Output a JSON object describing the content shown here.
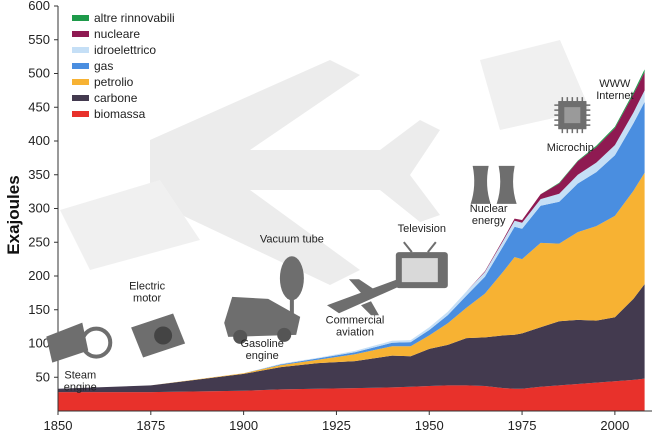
{
  "chart_data": {
    "type": "area",
    "stacked": true,
    "title": "",
    "xlabel": "",
    "ylabel": "Exajoules",
    "xlim": [
      1850,
      2010
    ],
    "ylim": [
      0,
      600
    ],
    "x_ticks": [
      1850,
      1875,
      1900,
      1925,
      1950,
      1975,
      2000
    ],
    "y_ticks": [
      50,
      100,
      150,
      200,
      250,
      300,
      350,
      400,
      450,
      500,
      550,
      600
    ],
    "grid": false,
    "legend_position": "top-left",
    "x": [
      1850,
      1875,
      1900,
      1910,
      1920,
      1930,
      1940,
      1945,
      1950,
      1955,
      1960,
      1965,
      1970,
      1973,
      1975,
      1980,
      1985,
      1990,
      1995,
      2000,
      2005,
      2008
    ],
    "series": [
      {
        "name": "biomassa",
        "color": "#e8312b",
        "values": [
          28,
          28,
          30,
          32,
          33,
          34,
          35,
          36,
          37,
          38,
          38,
          37,
          34,
          33,
          33,
          36,
          38,
          40,
          42,
          44,
          46,
          48
        ]
      },
      {
        "name": "carbone",
        "color": "#433a4f",
        "values": [
          5,
          10,
          25,
          33,
          38,
          40,
          47,
          45,
          55,
          60,
          70,
          72,
          78,
          80,
          82,
          88,
          95,
          95,
          92,
          95,
          120,
          140
        ]
      },
      {
        "name": "petrolio",
        "color": "#f7b233",
        "values": [
          0,
          0,
          1,
          3,
          5,
          10,
          14,
          15,
          20,
          32,
          45,
          65,
          95,
          115,
          110,
          125,
          115,
          130,
          140,
          150,
          160,
          165
        ]
      },
      {
        "name": "gas",
        "color": "#4a8ee0",
        "values": [
          0,
          0,
          0,
          1,
          2,
          3,
          5,
          6,
          8,
          12,
          18,
          25,
          38,
          45,
          45,
          55,
          62,
          72,
          80,
          90,
          100,
          105
        ]
      },
      {
        "name": "idroelettrico",
        "color": "#c5dff6",
        "values": [
          0,
          0,
          0,
          1,
          1,
          2,
          3,
          3,
          4,
          5,
          6,
          7,
          8,
          9,
          9,
          10,
          12,
          13,
          14,
          15,
          16,
          17
        ]
      },
      {
        "name": "nucleare",
        "color": "#8f1a52",
        "values": [
          0,
          0,
          0,
          0,
          0,
          0,
          0,
          0,
          0,
          0,
          0,
          1,
          2,
          3,
          4,
          7,
          15,
          20,
          23,
          25,
          27,
          27
        ]
      },
      {
        "name": "altre rinnovabili",
        "color": "#1e9a4a",
        "values": [
          0,
          0,
          0,
          0,
          0,
          0,
          0,
          0,
          0,
          0,
          0,
          0,
          0,
          0,
          0,
          0,
          1,
          1,
          2,
          2,
          3,
          4
        ]
      }
    ],
    "legend_order": [
      "altre rinnovabili",
      "nucleare",
      "idroelettrico",
      "gas",
      "petrolio",
      "carbone",
      "biomassa"
    ],
    "annotations": [
      {
        "lines": [
          "Steam",
          "engine"
        ],
        "x": 1856,
        "y": 48,
        "icon": "steam-engine-icon"
      },
      {
        "lines": [
          "Electric",
          "motor"
        ],
        "x": 1874,
        "y": 180,
        "icon": "electric-motor-icon"
      },
      {
        "lines": [
          "Gasoline",
          "engine"
        ],
        "x": 1905,
        "y": 95,
        "icon": "car-icon"
      },
      {
        "lines": [
          "Vacuum tube"
        ],
        "x": 1913,
        "y": 250,
        "icon": "vacuum-tube-icon"
      },
      {
        "lines": [
          "Commercial",
          "aviation"
        ],
        "x": 1930,
        "y": 130,
        "icon": "airplane-icon"
      },
      {
        "lines": [
          "Television"
        ],
        "x": 1948,
        "y": 265,
        "icon": "television-icon"
      },
      {
        "lines": [
          "Nuclear",
          "energy"
        ],
        "x": 1966,
        "y": 295,
        "icon": "nuclear-plant-icon"
      },
      {
        "lines": [
          "Microchip"
        ],
        "x": 1988,
        "y": 385,
        "icon": "microchip-icon"
      },
      {
        "lines": [
          "WWW",
          "Internet"
        ],
        "x": 2000,
        "y": 480,
        "icon": ""
      }
    ]
  }
}
